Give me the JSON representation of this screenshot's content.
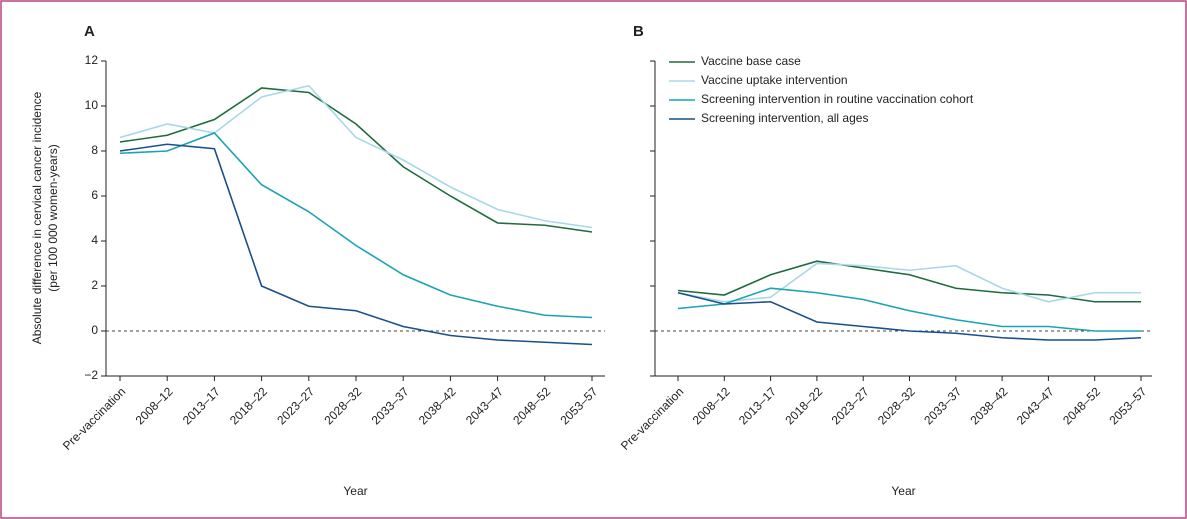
{
  "chart_data": [
    {
      "type": "line",
      "panel_label": "A",
      "ylabel": [
        "Absolute difference in cervical cancer incidence",
        "(per 100 000 women-years)"
      ],
      "xlabel": "Year",
      "categories": [
        "Pre-vaccination",
        "2008–12",
        "2013–17",
        "2018–22",
        "2023–27",
        "2028–32",
        "2033–37",
        "2038–42",
        "2043–47",
        "2048–52",
        "2053–57"
      ],
      "ylim": [
        -2,
        12
      ],
      "yticks": [
        {
          "value": -2,
          "label": "−2"
        },
        0,
        2,
        4,
        6,
        8,
        10,
        12
      ],
      "show_ytick_labels": true,
      "hline": 0,
      "series": [
        {
          "color": "#1e6b3c",
          "values": [
            8.4,
            8.7,
            9.4,
            10.8,
            10.6,
            9.2,
            7.3,
            6.0,
            4.8,
            4.7,
            4.4
          ]
        },
        {
          "color": "#a8d8e8",
          "values": [
            8.6,
            9.2,
            8.8,
            10.4,
            10.9,
            8.6,
            7.6,
            6.4,
            5.4,
            4.9,
            4.6
          ]
        },
        {
          "color": "#1aa3b5",
          "values": [
            7.9,
            8.0,
            8.8,
            6.5,
            5.3,
            3.8,
            2.5,
            1.6,
            1.1,
            0.7,
            0.6
          ]
        },
        {
          "color": "#1a4f8a",
          "values": [
            8.0,
            8.3,
            8.1,
            2.0,
            1.1,
            0.9,
            0.2,
            -0.2,
            -0.4,
            -0.5,
            -0.6
          ]
        }
      ]
    },
    {
      "type": "line",
      "panel_label": "B",
      "xlabel": "Year",
      "categories": [
        "Pre-vaccination",
        "2008–12",
        "2013–17",
        "2018–22",
        "2023–27",
        "2028–32",
        "2033–37",
        "2038–42",
        "2043–47",
        "2048–52",
        "2053–57"
      ],
      "ylim": [
        -2,
        12
      ],
      "yticks": [
        -2,
        0,
        2,
        4,
        6,
        8,
        10,
        12
      ],
      "show_ytick_labels": false,
      "hline": 0,
      "legend": "upper left",
      "series": [
        {
          "name": "Vaccine base case",
          "color": "#1e6b3c",
          "values": [
            1.8,
            1.6,
            2.5,
            3.1,
            2.8,
            2.5,
            1.9,
            1.7,
            1.6,
            1.3,
            1.3
          ]
        },
        {
          "name": "Vaccine uptake intervention",
          "color": "#a8d8e8",
          "values": [
            1.7,
            1.3,
            1.5,
            3.0,
            2.9,
            2.7,
            2.9,
            1.9,
            1.3,
            1.7,
            1.7
          ]
        },
        {
          "name": "Screening intervention in routine vaccination cohort",
          "color": "#1aa3b5",
          "values": [
            1.0,
            1.2,
            1.9,
            1.7,
            1.4,
            0.9,
            0.5,
            0.2,
            0.2,
            0.0,
            0.0
          ]
        },
        {
          "name": "Screening intervention, all ages",
          "color": "#1a4f8a",
          "values": [
            1.7,
            1.2,
            1.3,
            0.4,
            0.2,
            0.0,
            -0.1,
            -0.3,
            -0.4,
            -0.4,
            -0.3
          ]
        }
      ]
    }
  ]
}
